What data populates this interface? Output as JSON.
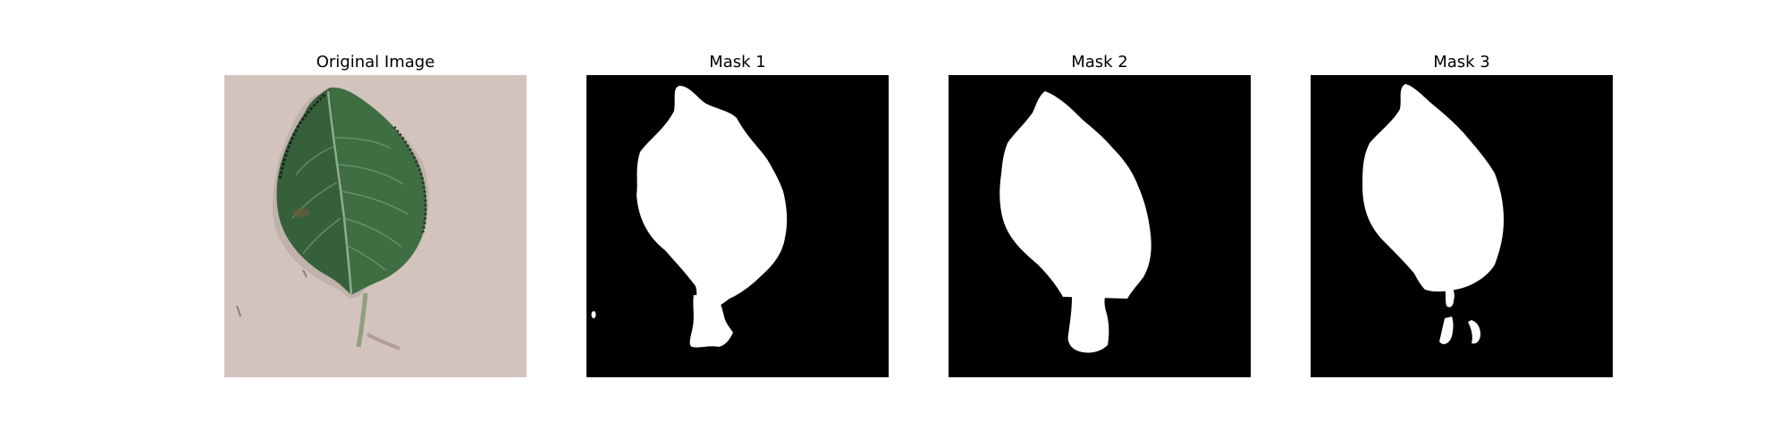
{
  "figure": {
    "panels": [
      {
        "title": "Original Image",
        "kind": "photo",
        "subject": "leaf"
      },
      {
        "title": "Mask 1",
        "kind": "mask"
      },
      {
        "title": "Mask 2",
        "kind": "mask"
      },
      {
        "title": "Mask 3",
        "kind": "mask"
      }
    ]
  },
  "colors": {
    "background": "#ffffff",
    "mask_background": "#000000",
    "mask_foreground": "#ffffff",
    "photo_background": "#d3c3bd",
    "leaf_green": "#3f6e43",
    "leaf_dark": "#2d5533",
    "leaf_vein": "#8fae8c"
  }
}
